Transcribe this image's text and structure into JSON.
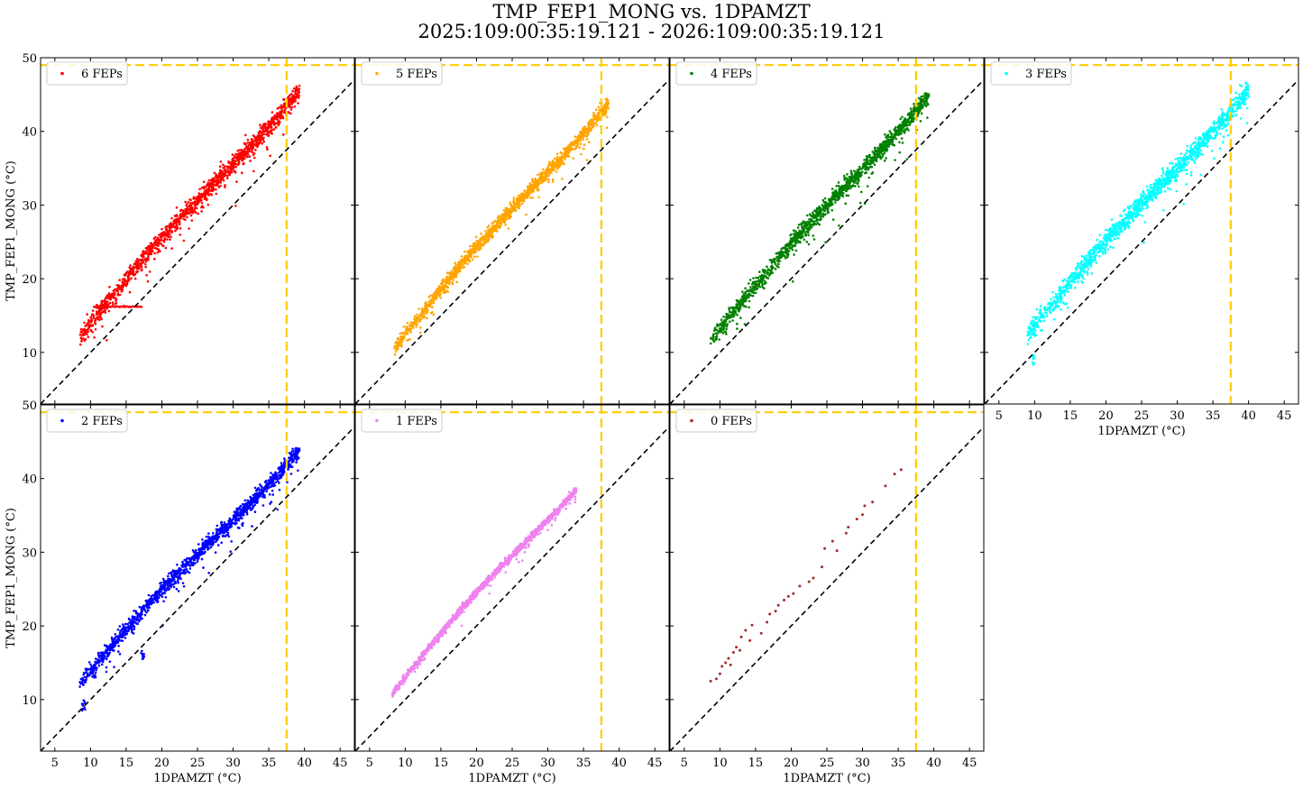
{
  "figure": {
    "title_line_1": "TMP_FEP1_MONG vs. 1DPAMZT",
    "title_line_2": "2025:109:00:35:19.121 - 2026:109:00:35:19.121"
  },
  "colors": {
    "limit_line": "#ffcc00",
    "identity_line": "#000000",
    "panel_border": "#000000"
  },
  "chart_data": {
    "type": "scatter",
    "shared": {
      "xlabel": "1DPAMZT (°C)",
      "ylabel": "TMP_FEP1_MONG (°C)",
      "xlim": [
        3,
        47
      ],
      "ylim": [
        3,
        50
      ],
      "xticks": [
        5,
        10,
        15,
        20,
        25,
        30,
        35,
        40,
        45
      ],
      "yticks": [
        10,
        20,
        30,
        40,
        50
      ],
      "identity_line": "y = x (black dashed)",
      "limit_lines": {
        "x": 37.5,
        "y": 49,
        "style": "yellow dashed"
      },
      "legend_location": "upper left",
      "grid": false
    },
    "panels": [
      {
        "label": "6 FEPs",
        "color": "#ff0000",
        "band": {
          "x_range": [
            8.5,
            39.3
          ],
          "y_at_xmin": 12.0,
          "y_at_xmax": 46.2,
          "spread": 1.3
        },
        "clusters": [
          {
            "x_range": [
              10.5,
              17.2
            ],
            "y": 16.2
          }
        ]
      },
      {
        "label": "5 FEPs",
        "color": "#ffa500",
        "band": {
          "x_range": [
            8.5,
            38.5
          ],
          "y_at_xmin": 10.5,
          "y_at_xmax": 44.5,
          "spread": 1.0
        }
      },
      {
        "label": "4 FEPs",
        "color": "#008000",
        "band": {
          "x_range": [
            8.7,
            39.3
          ],
          "y_at_xmin": 11.5,
          "y_at_xmax": 45.5,
          "spread": 1.2
        }
      },
      {
        "label": "3 FEPs",
        "color": "#00ffff",
        "band": {
          "x_range": [
            9.0,
            40.0
          ],
          "y_at_xmin": 12.3,
          "y_at_xmax": 46.3,
          "spread": 1.4
        },
        "clusters": [
          {
            "x": 9.8,
            "y": 9.0
          }
        ]
      },
      {
        "label": "2 FEPs",
        "color": "#0000ff",
        "band": {
          "x_range": [
            8.5,
            39.3
          ],
          "y_at_xmin": 12.0,
          "y_at_xmax": 44.5,
          "spread": 1.1
        },
        "clusters": [
          {
            "x": 17.3,
            "y": 16.2
          },
          {
            "x": 9.0,
            "y": 9.2
          }
        ]
      },
      {
        "label": "1 FEPs",
        "color": "#ee82ee",
        "band": {
          "x_range": [
            8.2,
            34.0
          ],
          "y_at_xmin": 10.8,
          "y_at_xmax": 39.2,
          "spread": 0.5
        }
      },
      {
        "label": "0 FEPs",
        "color": "#a52a2a",
        "points": [
          [
            8.7,
            12.5
          ],
          [
            9.5,
            12.8
          ],
          [
            10.0,
            13.5
          ],
          [
            10.3,
            14.5
          ],
          [
            10.8,
            15.0
          ],
          [
            11.2,
            15.6
          ],
          [
            11.5,
            14.7
          ],
          [
            11.9,
            16.4
          ],
          [
            12.3,
            17.1
          ],
          [
            12.8,
            16.7
          ],
          [
            13.0,
            18.5
          ],
          [
            13.6,
            19.4
          ],
          [
            14.2,
            18.0
          ],
          [
            14.5,
            20.1
          ],
          [
            15.8,
            19.0
          ],
          [
            16.6,
            20.5
          ],
          [
            17.0,
            21.6
          ],
          [
            17.8,
            22.0
          ],
          [
            18.2,
            22.8
          ],
          [
            19.0,
            23.5
          ],
          [
            19.6,
            24.0
          ],
          [
            20.3,
            24.4
          ],
          [
            21.2,
            25.4
          ],
          [
            22.5,
            26.0
          ],
          [
            23.1,
            26.5
          ],
          [
            24.3,
            28.0
          ],
          [
            24.7,
            30.5
          ],
          [
            25.8,
            31.5
          ],
          [
            26.4,
            30.2
          ],
          [
            27.7,
            32.6
          ],
          [
            28.0,
            33.4
          ],
          [
            29.2,
            34.5
          ],
          [
            30.0,
            35.1
          ],
          [
            30.3,
            36.3
          ],
          [
            31.4,
            36.8
          ],
          [
            33.2,
            39.0
          ],
          [
            34.5,
            40.6
          ],
          [
            35.4,
            41.2
          ]
        ]
      }
    ]
  }
}
